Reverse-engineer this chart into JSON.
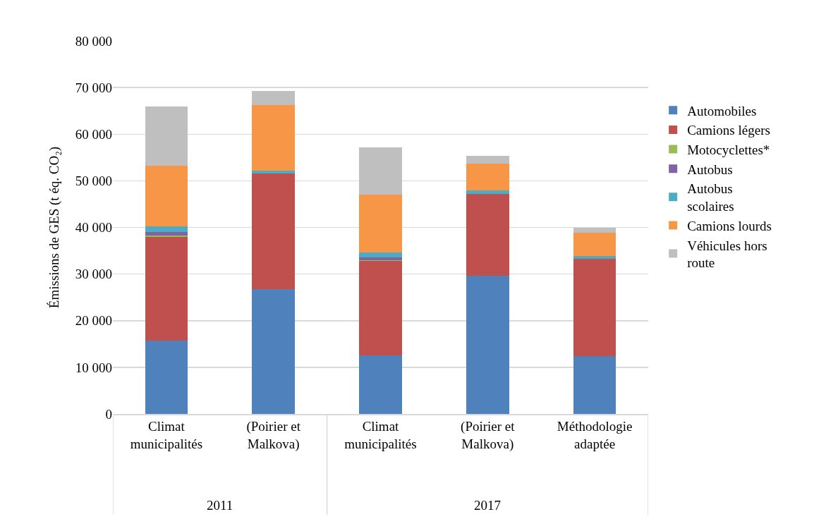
{
  "chart_data": {
    "type": "bar",
    "stacked": true,
    "ylabel": "Émissions de GES (t éq. CO₂)",
    "categories": [
      "Climat municipalités",
      "(Poirier et Malkova)",
      "Climat municipalités",
      "(Poirier et Malkova)",
      "Méthodologie adaptée"
    ],
    "annotations": [
      "2011",
      "2017"
    ],
    "ylim": [
      0,
      80000
    ],
    "yticks": [
      {
        "value": 0,
        "label": "0"
      },
      {
        "value": 10000,
        "label": "10 000"
      },
      {
        "value": 20000,
        "label": "20 000"
      },
      {
        "value": 30000,
        "label": "30 000"
      },
      {
        "value": 40000,
        "label": "40 000"
      },
      {
        "value": 50000,
        "label": "50 000"
      },
      {
        "value": 60000,
        "label": "60 000"
      },
      {
        "value": 70000,
        "label": "70 000"
      },
      {
        "value": 80000,
        "label": "80 000"
      }
    ],
    "grid": "y",
    "legend": "right",
    "series": [
      {
        "name": "Automobiles",
        "color": "#4f81bd",
        "values": [
          15800,
          26800,
          12600,
          29600,
          12400
        ]
      },
      {
        "name": "Camions légers",
        "color": "#c0504d",
        "values": [
          22200,
          24700,
          20200,
          17600,
          20800
        ]
      },
      {
        "name": "Motocyclettes*",
        "color": "#9bbb59",
        "values": [
          300,
          0,
          100,
          0,
          0
        ]
      },
      {
        "name": "Autobus",
        "color": "#8064a2",
        "values": [
          700,
          0,
          600,
          0,
          0
        ]
      },
      {
        "name": "Autobus scolaires",
        "color": "#4bacc6",
        "values": [
          1300,
          700,
          1200,
          800,
          700
        ]
      },
      {
        "name": "Camions lourds",
        "color": "#f79646",
        "values": [
          13000,
          14000,
          12400,
          5700,
          4900
        ]
      },
      {
        "name": "Véhicules hors route",
        "color": "#bfbfbf",
        "values": [
          12600,
          3100,
          10100,
          1700,
          1200
        ]
      }
    ]
  }
}
